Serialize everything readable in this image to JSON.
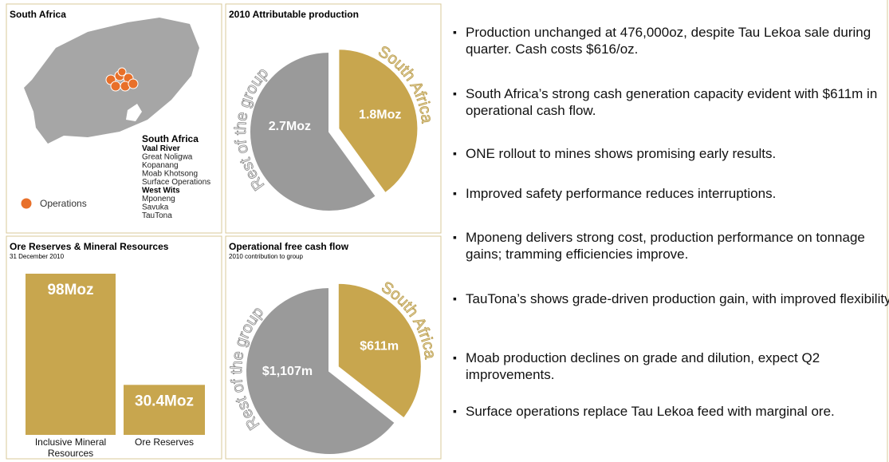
{
  "map": {
    "title": "South Africa",
    "legend": "Operations",
    "heading": "South Africa",
    "groups": [
      {
        "name": "Vaal River",
        "mines": [
          "Great Noligwa",
          "Kopanang",
          "Moab Khotsong",
          "Surface Operations"
        ]
      },
      {
        "name": "West Wits",
        "mines": [
          "Mponeng",
          "Savuka",
          "TauTona"
        ]
      }
    ]
  },
  "chart_data": [
    {
      "type": "pie",
      "title": "2010 Attributable production",
      "categories": [
        "South Africa",
        "Rest of the group"
      ],
      "values": [
        1.8,
        2.7
      ],
      "value_labels": [
        "1.8Moz",
        "2.7Moz"
      ],
      "colors": [
        "#c8a64e",
        "#9a9a9a"
      ]
    },
    {
      "type": "bar",
      "title": "Ore Reserves & Mineral Resources",
      "subtitle": "31 December 2010",
      "categories": [
        "Inclusive Mineral Resources",
        "Ore Reserves"
      ],
      "values": [
        98,
        30.4
      ],
      "value_labels": [
        "98Moz",
        "30.4Moz"
      ],
      "color": "#c8a64e"
    },
    {
      "type": "pie",
      "title": "Operational free cash flow",
      "subtitle": "2010 contribution to group",
      "categories": [
        "South Africa",
        "Rest of the group"
      ],
      "values": [
        611,
        1107
      ],
      "value_labels": [
        "$611m",
        "$1,107m"
      ],
      "colors": [
        "#c8a64e",
        "#9a9a9a"
      ]
    }
  ],
  "bullets": [
    "Production unchanged at 476,000oz, despite Tau Lekoa sale during quarter. Cash costs $616/oz.",
    "South Africa’s strong cash generation capacity evident with $611m in operational cash flow.",
    "ONE rollout to mines shows promising early results.",
    "Improved safety performance reduces interruptions.",
    "Mponeng delivers strong cost, production performance on tonnage gains; tramming efficiencies improve.",
    "TauTona’s shows grade-driven production gain, with improved flexibility.",
    "Moab production declines on grade and dilution, expect Q2 improvements.",
    "Surface operations replace Tau Lekoa feed with marginal ore."
  ]
}
